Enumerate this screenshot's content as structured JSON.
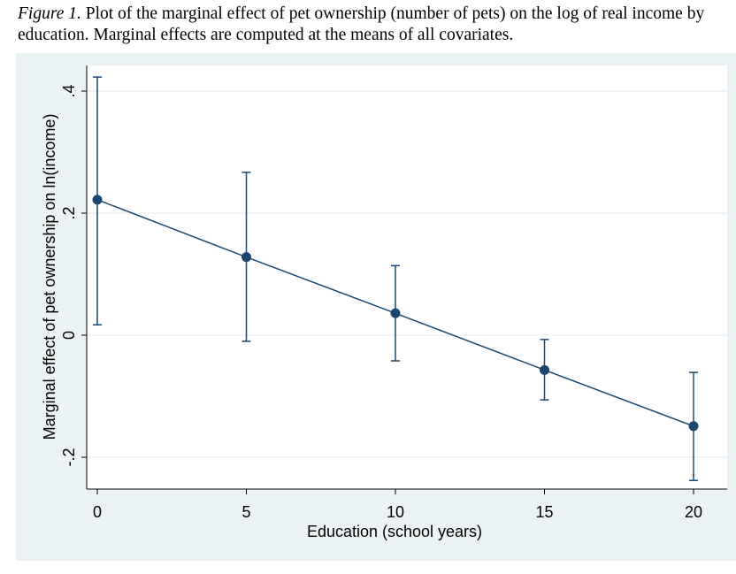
{
  "caption": {
    "label": "Figure 1.",
    "text": " Plot of the marginal effect of pet ownership (number of pets) on the log of real income by education. Marginal effects are computed at the means of all covariates."
  },
  "chart_data": {
    "type": "line",
    "xlabel": "Education (school years)",
    "ylabel": "Marginal effect of pet ownership on ln(income)",
    "x": [
      0,
      5,
      10,
      15,
      20
    ],
    "values": [
      0.222,
      0.128,
      0.036,
      -0.057,
      -0.149
    ],
    "ci_upper": [
      0.423,
      0.267,
      0.114,
      -0.007,
      -0.061
    ],
    "ci_lower": [
      0.017,
      -0.01,
      -0.042,
      -0.106,
      -0.238
    ],
    "xticks": [
      "0",
      "5",
      "10",
      "15",
      "20"
    ],
    "yticks": [
      "-.2",
      "0",
      ".2",
      ".4"
    ],
    "ytick_values": [
      -0.2,
      0,
      0.2,
      0.4
    ],
    "grid": true,
    "colors": {
      "series": "#1a476f",
      "background": "#eaf2f3",
      "grid": "#eaf2f3"
    }
  }
}
